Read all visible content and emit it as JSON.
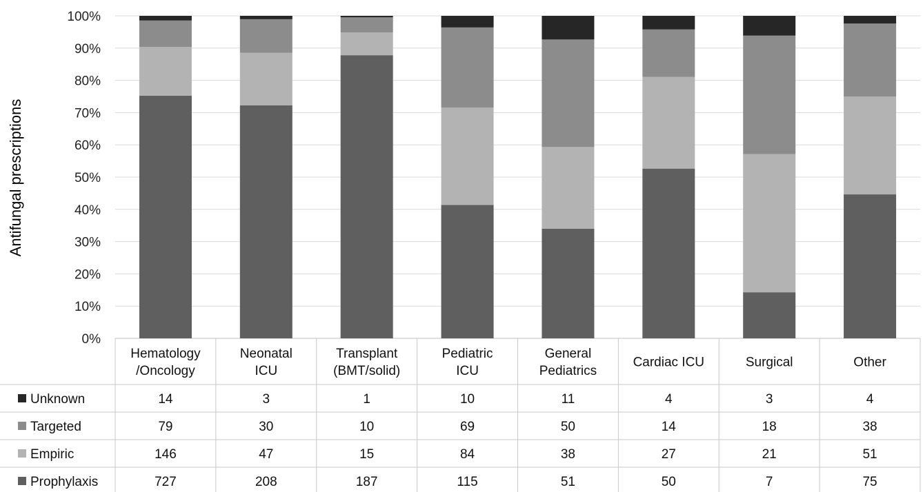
{
  "chart_data": {
    "type": "bar",
    "stacked": true,
    "normalized": true,
    "title": "",
    "xlabel": "",
    "ylabel": "Antifungal prescriptions",
    "ylim": [
      0,
      100
    ],
    "y_ticks": [
      "0%",
      "10%",
      "20%",
      "30%",
      "40%",
      "50%",
      "60%",
      "70%",
      "80%",
      "90%",
      "100%"
    ],
    "grid": true,
    "legend_position": "data table below chart",
    "categories": [
      [
        "Hematology",
        "/Oncology"
      ],
      [
        "Neonatal",
        "ICU"
      ],
      [
        "Transplant",
        "(BMT/solid)"
      ],
      [
        "Pediatric",
        "ICU"
      ],
      [
        "General",
        "Pediatrics"
      ],
      [
        "Cardiac ICU"
      ],
      [
        "Surgical"
      ],
      [
        "Other"
      ]
    ],
    "series": [
      {
        "name": "Prophylaxis",
        "color": "#5f5f5f",
        "values": [
          727,
          208,
          187,
          115,
          51,
          50,
          7,
          75
        ]
      },
      {
        "name": "Empiric",
        "color": "#b3b3b3",
        "values": [
          146,
          47,
          15,
          84,
          38,
          27,
          21,
          51
        ]
      },
      {
        "name": "Targeted",
        "color": "#8c8c8c",
        "values": [
          79,
          30,
          10,
          69,
          50,
          14,
          18,
          38
        ]
      },
      {
        "name": "Unknown",
        "color": "#262626",
        "values": [
          14,
          3,
          1,
          10,
          11,
          4,
          3,
          4
        ]
      }
    ],
    "table_row_order": [
      "Unknown",
      "Targeted",
      "Empiric",
      "Prophylaxis"
    ]
  }
}
